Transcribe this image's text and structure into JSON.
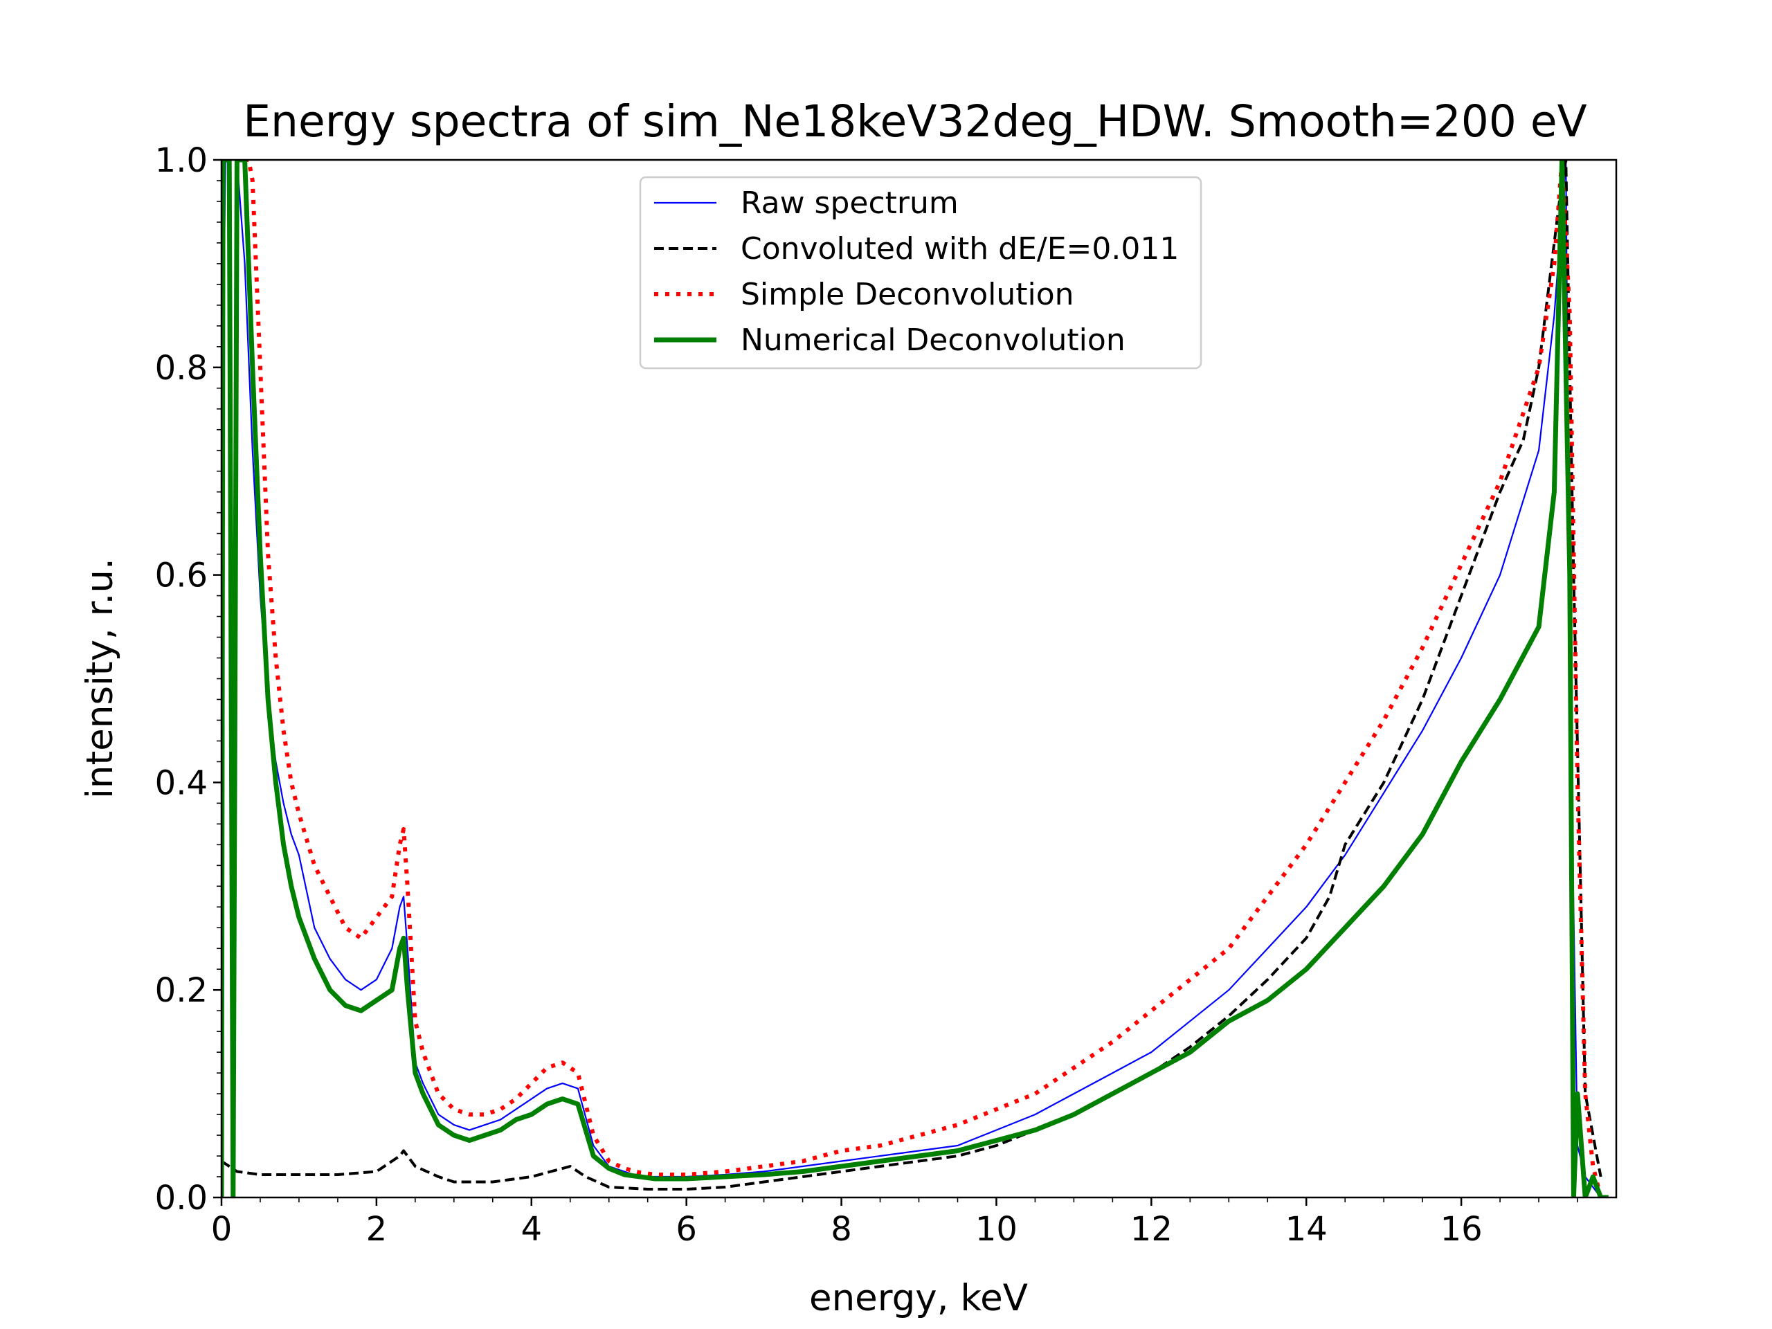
{
  "chart_data": {
    "type": "line",
    "title": "Energy spectra of sim_Ne18keV32deg_HDW. Smooth=200 eV",
    "xlabel": "energy, keV",
    "ylabel": "intensity, r.u.",
    "xlim": [
      0,
      18.0
    ],
    "ylim": [
      0,
      1.0
    ],
    "xticks": [
      "0",
      "2",
      "4",
      "6",
      "8",
      "10",
      "12",
      "14",
      "16"
    ],
    "yticks": [
      "0.0",
      "0.2",
      "0.4",
      "0.6",
      "0.8",
      "1.0"
    ],
    "grid": false,
    "legend_position": "top-center",
    "series": [
      {
        "name": "Raw spectrum",
        "color": "#0000ff",
        "style": "solid-thin",
        "x": [
          0.0,
          0.02,
          0.05,
          0.1,
          0.2,
          0.3,
          0.4,
          0.5,
          0.6,
          0.7,
          0.8,
          0.9,
          1.0,
          1.2,
          1.4,
          1.6,
          1.8,
          2.0,
          2.2,
          2.3,
          2.35,
          2.4,
          2.5,
          2.6,
          2.8,
          3.0,
          3.2,
          3.4,
          3.6,
          3.8,
          4.0,
          4.2,
          4.4,
          4.6,
          4.8,
          5.0,
          5.2,
          5.4,
          5.6,
          5.8,
          6.0,
          6.5,
          7.0,
          7.5,
          8.0,
          8.5,
          9.0,
          9.5,
          10.0,
          10.5,
          11.0,
          11.5,
          12.0,
          12.5,
          13.0,
          13.5,
          14.0,
          14.5,
          15.0,
          15.5,
          16.0,
          16.5,
          17.0,
          17.2,
          17.35,
          17.4,
          17.5,
          17.6,
          17.7,
          17.8,
          17.9
        ],
        "y": [
          0.0,
          0.8,
          1.0,
          1.0,
          1.0,
          0.9,
          0.72,
          0.58,
          0.48,
          0.42,
          0.38,
          0.35,
          0.33,
          0.26,
          0.23,
          0.21,
          0.2,
          0.21,
          0.24,
          0.28,
          0.29,
          0.24,
          0.13,
          0.11,
          0.08,
          0.07,
          0.065,
          0.07,
          0.075,
          0.085,
          0.095,
          0.105,
          0.11,
          0.105,
          0.05,
          0.03,
          0.025,
          0.02,
          0.02,
          0.02,
          0.02,
          0.022,
          0.025,
          0.03,
          0.035,
          0.04,
          0.045,
          0.05,
          0.065,
          0.08,
          0.1,
          0.12,
          0.14,
          0.17,
          0.2,
          0.24,
          0.28,
          0.33,
          0.39,
          0.45,
          0.52,
          0.6,
          0.72,
          0.85,
          1.0,
          0.5,
          0.05,
          0.02,
          0.01,
          0.0,
          0.0
        ]
      },
      {
        "name": "Convoluted with dE/E=0.011",
        "color": "#000000",
        "style": "dashed",
        "x": [
          0.0,
          0.2,
          0.5,
          1.0,
          1.5,
          2.0,
          2.3,
          2.35,
          2.5,
          2.8,
          3.0,
          3.5,
          4.0,
          4.5,
          4.7,
          5.0,
          5.5,
          6.0,
          6.5,
          7.0,
          7.5,
          8.0,
          8.5,
          9.0,
          9.5,
          10.0,
          10.5,
          11.0,
          11.5,
          12.0,
          12.5,
          13.0,
          13.5,
          14.0,
          14.3,
          14.5,
          15.0,
          15.5,
          16.0,
          16.5,
          16.8,
          17.0,
          17.2,
          17.3,
          17.35,
          17.45,
          17.6,
          17.8
        ],
        "y": [
          0.035,
          0.025,
          0.022,
          0.022,
          0.022,
          0.025,
          0.04,
          0.045,
          0.03,
          0.02,
          0.015,
          0.015,
          0.02,
          0.03,
          0.02,
          0.01,
          0.008,
          0.008,
          0.01,
          0.015,
          0.02,
          0.025,
          0.03,
          0.035,
          0.04,
          0.05,
          0.065,
          0.08,
          0.1,
          0.12,
          0.145,
          0.175,
          0.21,
          0.25,
          0.29,
          0.34,
          0.4,
          0.48,
          0.58,
          0.68,
          0.73,
          0.8,
          0.92,
          0.98,
          1.0,
          0.6,
          0.1,
          0.02
        ]
      },
      {
        "name": "Simple Deconvolution",
        "color": "#ff0000",
        "style": "dotted",
        "x": [
          0.3,
          0.35,
          0.4,
          0.5,
          0.6,
          0.7,
          0.8,
          0.9,
          1.0,
          1.2,
          1.4,
          1.6,
          1.8,
          2.0,
          2.2,
          2.3,
          2.35,
          2.4,
          2.5,
          2.6,
          2.8,
          3.0,
          3.2,
          3.4,
          3.6,
          3.8,
          4.0,
          4.2,
          4.4,
          4.6,
          4.8,
          5.0,
          5.2,
          5.4,
          5.6,
          5.8,
          6.0,
          6.5,
          7.0,
          7.5,
          8.0,
          8.5,
          9.0,
          9.5,
          10.0,
          10.5,
          11.0,
          11.5,
          12.0,
          12.5,
          13.0,
          13.5,
          14.0,
          14.5,
          15.0,
          15.5,
          16.0,
          16.5,
          17.0,
          17.2,
          17.3,
          17.4,
          17.5,
          17.6,
          17.7,
          17.8
        ],
        "y": [
          1.0,
          1.0,
          0.98,
          0.8,
          0.62,
          0.52,
          0.45,
          0.4,
          0.37,
          0.32,
          0.29,
          0.26,
          0.25,
          0.27,
          0.29,
          0.34,
          0.355,
          0.3,
          0.17,
          0.14,
          0.1,
          0.085,
          0.08,
          0.08,
          0.085,
          0.095,
          0.11,
          0.125,
          0.13,
          0.12,
          0.06,
          0.035,
          0.028,
          0.024,
          0.022,
          0.022,
          0.022,
          0.025,
          0.03,
          0.035,
          0.045,
          0.05,
          0.06,
          0.07,
          0.085,
          0.1,
          0.125,
          0.15,
          0.18,
          0.21,
          0.24,
          0.29,
          0.34,
          0.4,
          0.46,
          0.53,
          0.61,
          0.69,
          0.8,
          0.9,
          1.0,
          0.85,
          0.4,
          0.1,
          0.03,
          0.0
        ]
      },
      {
        "name": "Numerical Deconvolution",
        "color": "#008000",
        "style": "solid-thick",
        "x": [
          0.0,
          0.02,
          0.05,
          0.1,
          0.15,
          0.2,
          0.3,
          0.4,
          0.5,
          0.6,
          0.7,
          0.8,
          0.9,
          1.0,
          1.2,
          1.4,
          1.6,
          1.8,
          2.0,
          2.2,
          2.3,
          2.35,
          2.4,
          2.5,
          2.6,
          2.8,
          3.0,
          3.2,
          3.4,
          3.6,
          3.8,
          4.0,
          4.2,
          4.4,
          4.6,
          4.8,
          5.0,
          5.2,
          5.4,
          5.6,
          5.8,
          6.0,
          6.5,
          7.0,
          7.5,
          8.0,
          8.5,
          9.0,
          9.5,
          10.0,
          10.5,
          11.0,
          11.5,
          12.0,
          12.5,
          13.0,
          13.5,
          14.0,
          14.5,
          15.0,
          15.5,
          16.0,
          16.5,
          17.0,
          17.2,
          17.3,
          17.4,
          17.45,
          17.5,
          17.55,
          17.6,
          17.7,
          17.8,
          17.9
        ],
        "y": [
          0.0,
          1.0,
          1.0,
          1.0,
          0.0,
          1.0,
          1.0,
          0.8,
          0.62,
          0.48,
          0.4,
          0.34,
          0.3,
          0.27,
          0.23,
          0.2,
          0.185,
          0.18,
          0.19,
          0.2,
          0.24,
          0.25,
          0.2,
          0.12,
          0.1,
          0.07,
          0.06,
          0.055,
          0.06,
          0.065,
          0.075,
          0.08,
          0.09,
          0.095,
          0.09,
          0.04,
          0.028,
          0.022,
          0.02,
          0.018,
          0.018,
          0.018,
          0.02,
          0.022,
          0.025,
          0.03,
          0.035,
          0.04,
          0.045,
          0.055,
          0.065,
          0.08,
          0.1,
          0.12,
          0.14,
          0.17,
          0.19,
          0.22,
          0.26,
          0.3,
          0.35,
          0.42,
          0.48,
          0.55,
          0.68,
          1.0,
          0.6,
          0.0,
          0.1,
          0.05,
          0.0,
          0.02,
          0.0,
          0.0
        ]
      }
    ]
  }
}
